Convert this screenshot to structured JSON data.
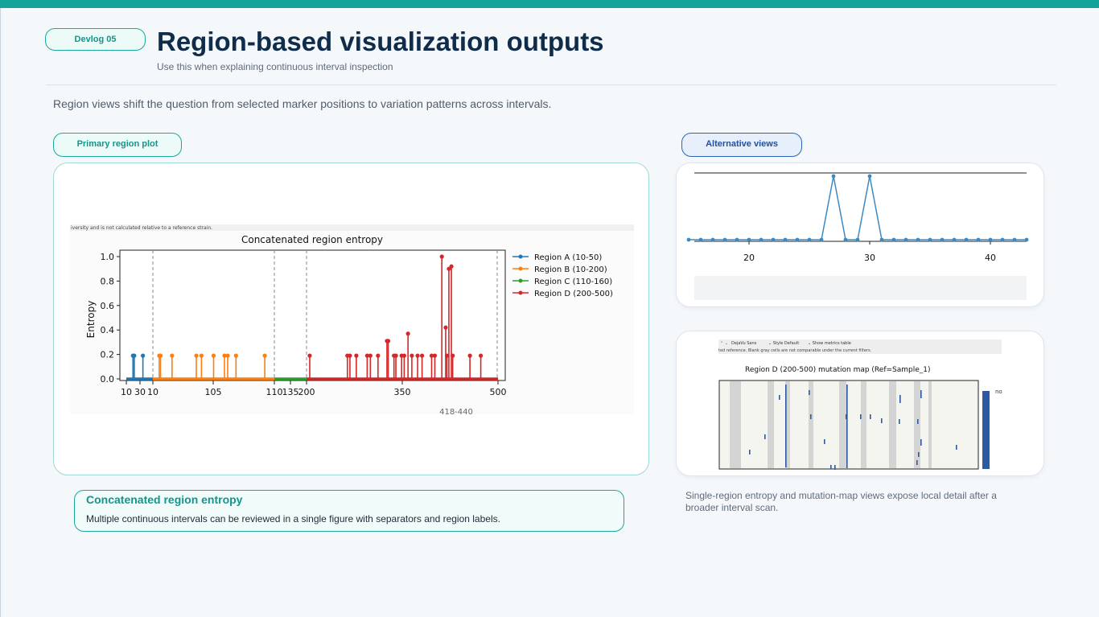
{
  "header": {
    "badge": "Devlog 05",
    "title": "Region-based visualization outputs",
    "subtitle": "Use this when explaining continuous interval inspection"
  },
  "intro": "Region views shift the question from selected marker positions to variation patterns across intervals.",
  "primary": {
    "pill": "Primary region plot",
    "caption_title": "Concatenated region entropy",
    "caption_text": "Multiple continuous intervals can be reviewed in a single figure with separators and region labels."
  },
  "alternative": {
    "pill": "Alternative views",
    "note": "Single-region entropy and mutation-map views expose local detail after a broader interval scan."
  },
  "main_plot": {
    "note_text": "iversity and is not calculated relative to a reference strain.",
    "range_label": "418-440"
  },
  "mutation_map": {
    "toolbar": {
      "font": "DejaVu Sans",
      "style": "Style  Default",
      "metrics": "Show metrics table"
    },
    "note_text": "ted reference. Blank gray cells are not comparable under the current filters.",
    "legend_fragment": "no"
  },
  "colors": {
    "accent": "#14a39a",
    "region_a": "#1f77b4",
    "region_b": "#ff7f0e",
    "region_c": "#2ca02c",
    "region_d": "#d62728",
    "map_mark": "#2c5aa0"
  },
  "chart_data": [
    {
      "type": "line",
      "title": "Concatenated region entropy",
      "xlabel": "",
      "ylabel": "Entropy",
      "ylim": [
        0,
        1.05
      ],
      "grid": false,
      "legend": "top-right, outside plot area",
      "x_ticks": [
        "10",
        "30",
        "10",
        "105",
        "110",
        "135",
        "200",
        "350",
        "500"
      ],
      "y_ticks": [
        "0.0",
        "0.2",
        "0.4",
        "0.6",
        "0.8",
        "1.0"
      ],
      "series": [
        {
          "name": "Region A (10-50)",
          "color": "#1f77b4",
          "spikes": [
            {
              "x": 20,
              "y": 0.19
            },
            {
              "x": 22,
              "y": 0.19
            },
            {
              "x": 35,
              "y": 0.19
            }
          ]
        },
        {
          "name": "Region B (10-200)",
          "color": "#ff7f0e",
          "spikes": [
            {
              "x": 20,
              "y": 0.19
            },
            {
              "x": 22,
              "y": 0.19
            },
            {
              "x": 40,
              "y": 0.19
            },
            {
              "x": 78,
              "y": 0.19
            },
            {
              "x": 86,
              "y": 0.19
            },
            {
              "x": 105,
              "y": 0.19
            },
            {
              "x": 122,
              "y": 0.19
            },
            {
              "x": 127,
              "y": 0.19
            },
            {
              "x": 140,
              "y": 0.19
            },
            {
              "x": 185,
              "y": 0.19
            }
          ]
        },
        {
          "name": "Region C (110-160)",
          "color": "#2ca02c",
          "spikes": []
        },
        {
          "name": "Region D (200-500)",
          "color": "#d62728",
          "spikes": [
            {
              "x": 205,
              "y": 0.19
            },
            {
              "x": 264,
              "y": 0.19
            },
            {
              "x": 268,
              "y": 0.19
            },
            {
              "x": 278,
              "y": 0.19
            },
            {
              "x": 295,
              "y": 0.19
            },
            {
              "x": 300,
              "y": 0.19
            },
            {
              "x": 312,
              "y": 0.19
            },
            {
              "x": 326,
              "y": 0.31
            },
            {
              "x": 328,
              "y": 0.31
            },
            {
              "x": 337,
              "y": 0.19
            },
            {
              "x": 340,
              "y": 0.19
            },
            {
              "x": 349,
              "y": 0.19
            },
            {
              "x": 353,
              "y": 0.19
            },
            {
              "x": 359,
              "y": 0.37
            },
            {
              "x": 365,
              "y": 0.19
            },
            {
              "x": 374,
              "y": 0.19
            },
            {
              "x": 381,
              "y": 0.19
            },
            {
              "x": 396,
              "y": 0.19
            },
            {
              "x": 401,
              "y": 0.19
            },
            {
              "x": 412,
              "y": 1.0
            },
            {
              "x": 418,
              "y": 0.42
            },
            {
              "x": 420,
              "y": 0.19
            },
            {
              "x": 423,
              "y": 0.9
            },
            {
              "x": 427,
              "y": 0.92
            },
            {
              "x": 429,
              "y": 0.19
            },
            {
              "x": 456,
              "y": 0.19
            },
            {
              "x": 473,
              "y": 0.19
            }
          ]
        }
      ]
    },
    {
      "type": "line",
      "title": "",
      "xlabel": "",
      "ylabel": "",
      "x_ticks": [
        20,
        30,
        40
      ],
      "xlim": [
        14.2,
        43
      ],
      "grid": false,
      "series": [
        {
          "name": "",
          "color": "#3b8ac4",
          "x": [
            15,
            16,
            17,
            18,
            19,
            20,
            21,
            22,
            23,
            24,
            25,
            26,
            27,
            28,
            29,
            30,
            31,
            32,
            33,
            34,
            35,
            36,
            37,
            38,
            39,
            40,
            41,
            42,
            43
          ],
          "y": [
            0,
            0,
            0,
            0,
            0,
            0,
            0,
            0,
            0,
            0,
            0,
            0,
            1,
            0,
            0,
            1,
            0,
            0,
            0,
            0,
            0,
            0,
            0,
            0,
            0,
            0,
            0,
            0,
            0
          ]
        }
      ]
    }
  ]
}
